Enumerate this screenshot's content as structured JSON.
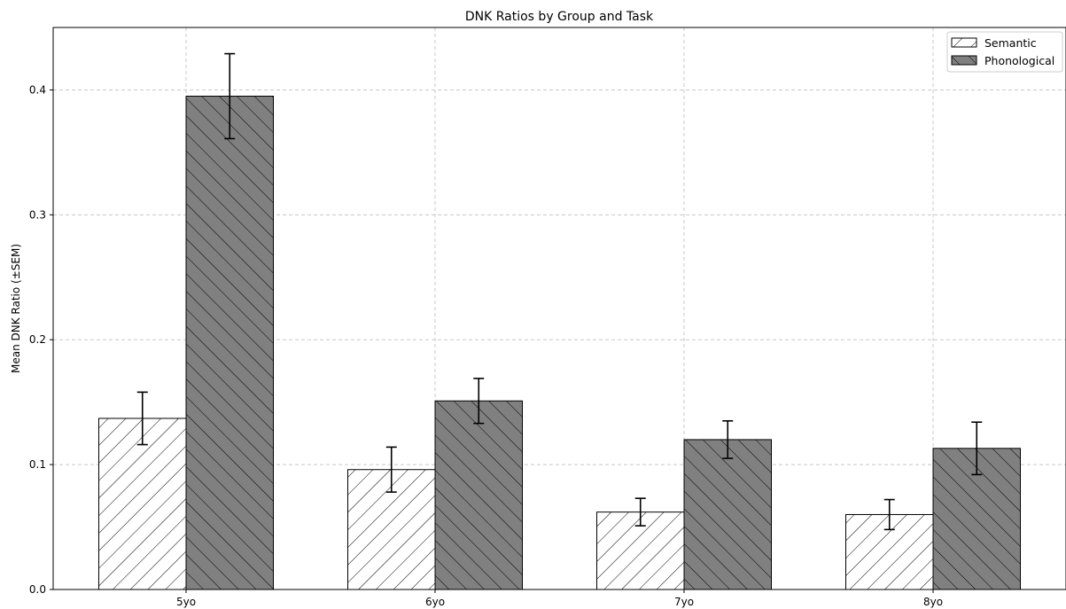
{
  "chart_data": {
    "type": "bar",
    "title": "DNK Ratios by Group and Task",
    "xlabel": "",
    "ylabel": "Mean DNK Ratio (±SEM)",
    "categories": [
      "5yo",
      "6yo",
      "7yo",
      "8yo"
    ],
    "series": [
      {
        "name": "Semantic",
        "color": "#ffffff",
        "hatch": "forward-diagonal",
        "values": [
          0.137,
          0.096,
          0.062,
          0.06
        ],
        "errors": [
          0.021,
          0.018,
          0.011,
          0.012
        ]
      },
      {
        "name": "Phonological",
        "color": "#808080",
        "hatch": "back-diagonal",
        "values": [
          0.395,
          0.151,
          0.12,
          0.113
        ],
        "errors": [
          0.034,
          0.018,
          0.015,
          0.021
        ]
      }
    ],
    "ylim": [
      0,
      0.45
    ],
    "yticks": [
      "0.0",
      "0.1",
      "0.2",
      "0.3",
      "0.4"
    ],
    "grid": true,
    "legend_position": "top-right"
  }
}
